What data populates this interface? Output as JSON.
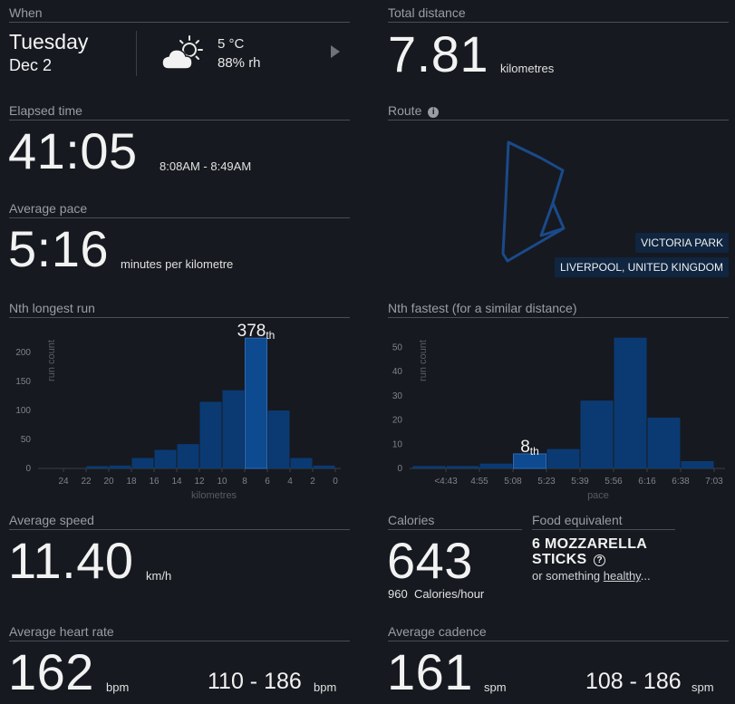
{
  "when": {
    "title": "When",
    "day": "Tuesday",
    "date": "Dec 2",
    "temp": "5 °C",
    "humidity": "88% rh"
  },
  "total_distance": {
    "title": "Total distance",
    "value": "7.81",
    "unit": "kilometres"
  },
  "elapsed": {
    "title": "Elapsed time",
    "value": "41:05",
    "range": "8:08AM - 8:49AM"
  },
  "route": {
    "title": "Route",
    "place": "VICTORIA PARK",
    "region": "LIVERPOOL, UNITED KINGDOM"
  },
  "pace": {
    "title": "Average pace",
    "value": "5:16",
    "unit": "minutes per kilometre"
  },
  "nth_longest": {
    "title": "Nth longest run",
    "rank_num": "378",
    "rank_suffix": "th"
  },
  "nth_fastest": {
    "title": "Nth fastest (for a similar distance)",
    "rank_num": "8",
    "rank_suffix": "th"
  },
  "speed": {
    "title": "Average speed",
    "value": "11.40",
    "unit": "km/h"
  },
  "calories": {
    "title": "Calories",
    "value": "643",
    "rate_value": "960",
    "rate_unit": "Calories/hour"
  },
  "food": {
    "title": "Food equivalent",
    "line1": "6 MOZZARELLA",
    "line2": "STICKS",
    "help": "?",
    "alt_prefix": "or something ",
    "alt_link": "healthy",
    "alt_suffix": "..."
  },
  "heart": {
    "title": "Average heart rate",
    "value": "162",
    "unit": "bpm",
    "range": "110 - 186",
    "range_unit": "bpm"
  },
  "cadence": {
    "title": "Average cadence",
    "value": "161",
    "unit": "spm",
    "range": "108 - 186",
    "range_unit": "spm"
  },
  "colors": {
    "bar": "#0b3a73",
    "bar_highlight": "#0e4a8f",
    "route_line": "#1a4a8a"
  },
  "chart_data": [
    {
      "type": "bar",
      "title": "",
      "xlabel": "kilometres",
      "ylabel": "run count",
      "x_reversed": true,
      "xlim": [
        0,
        25.5
      ],
      "ylim": [
        0,
        230
      ],
      "x_ticks": [
        24,
        22,
        20,
        18,
        16,
        14,
        12,
        10,
        8,
        6,
        4,
        2,
        0
      ],
      "y_ticks": [
        0,
        50,
        100,
        150,
        200
      ],
      "bins": [
        {
          "from": 0,
          "to": 2,
          "value": 5
        },
        {
          "from": 2,
          "to": 4,
          "value": 18
        },
        {
          "from": 4,
          "to": 6,
          "value": 100
        },
        {
          "from": 6,
          "to": 8,
          "value": 225,
          "highlight": true
        },
        {
          "from": 8,
          "to": 10,
          "value": 135
        },
        {
          "from": 10,
          "to": 12,
          "value": 115
        },
        {
          "from": 12,
          "to": 14,
          "value": 42
        },
        {
          "from": 14,
          "to": 16,
          "value": 32
        },
        {
          "from": 16,
          "to": 18,
          "value": 18
        },
        {
          "from": 18,
          "to": 20,
          "value": 5
        },
        {
          "from": 20,
          "to": 22,
          "value": 4
        }
      ]
    },
    {
      "type": "bar",
      "title": "",
      "xlabel": "pace",
      "ylabel": "run count",
      "ylim": [
        0,
        55
      ],
      "y_ticks": [
        0,
        10,
        20,
        30,
        40,
        50
      ],
      "x_ticks": [
        "<4:43",
        "4:55",
        "5:08",
        "5:23",
        "5:39",
        "5:56",
        "6:16",
        "6:38",
        "7:03"
      ],
      "values": [
        1,
        1,
        2,
        6,
        8,
        28,
        54,
        21,
        3
      ],
      "highlight_index": 3
    }
  ]
}
